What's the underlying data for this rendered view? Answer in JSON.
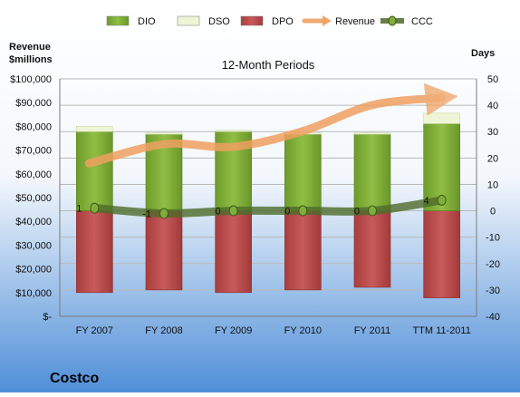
{
  "company": "Costco",
  "colors": {
    "dio": "#7aa832",
    "dso": "#eef5d6",
    "dpo": "#b84a4a",
    "revenue": "#f0a060",
    "ccc": "#4d6b2a",
    "bg_top": "#ffffff",
    "bg_bottom": "#4f8fd8"
  },
  "chart_data": {
    "type": "bar",
    "title": "12-Month Periods",
    "left_axis_label": [
      "Revenue",
      "$millions"
    ],
    "right_axis_label": "Days",
    "categories": [
      "FY 2007",
      "FY 2008",
      "FY 2009",
      "FY 2010",
      "FY 2011",
      "TTM 11-2011"
    ],
    "left_ylim": [
      0,
      100000
    ],
    "left_ticks": [
      "$-",
      "$10,000",
      "$20,000",
      "$30,000",
      "$40,000",
      "$50,000",
      "$60,000",
      "$70,000",
      "$80,000",
      "$90,000",
      "$100,000"
    ],
    "right_ylim": [
      -40,
      50
    ],
    "right_ticks": [
      "-40",
      "-30",
      "-20",
      "-10",
      "0",
      "10",
      "20",
      "30",
      "40",
      "50"
    ],
    "legend": [
      "DIO",
      "DSO",
      "DPO",
      "Revenue",
      "CCC"
    ],
    "legend_position": "top",
    "series": [
      {
        "name": "DIO",
        "axis": "right",
        "values": [
          30,
          29,
          30,
          29,
          29,
          33
        ]
      },
      {
        "name": "DSO",
        "axis": "right",
        "values": [
          2,
          0.5,
          0.5,
          0.5,
          0.5,
          4
        ]
      },
      {
        "name": "DPO",
        "axis": "right",
        "values": [
          -31,
          -30,
          -31,
          -30,
          -29,
          -33
        ]
      },
      {
        "name": "Revenue",
        "axis": "left",
        "values": [
          64400,
          72500,
          71400,
          78000,
          89000,
          92000
        ]
      },
      {
        "name": "CCC",
        "axis": "right",
        "values": [
          1,
          -1,
          0,
          0,
          0,
          4
        ],
        "labels": [
          "1",
          "-1",
          "0",
          "0",
          "0",
          "4"
        ]
      }
    ]
  }
}
